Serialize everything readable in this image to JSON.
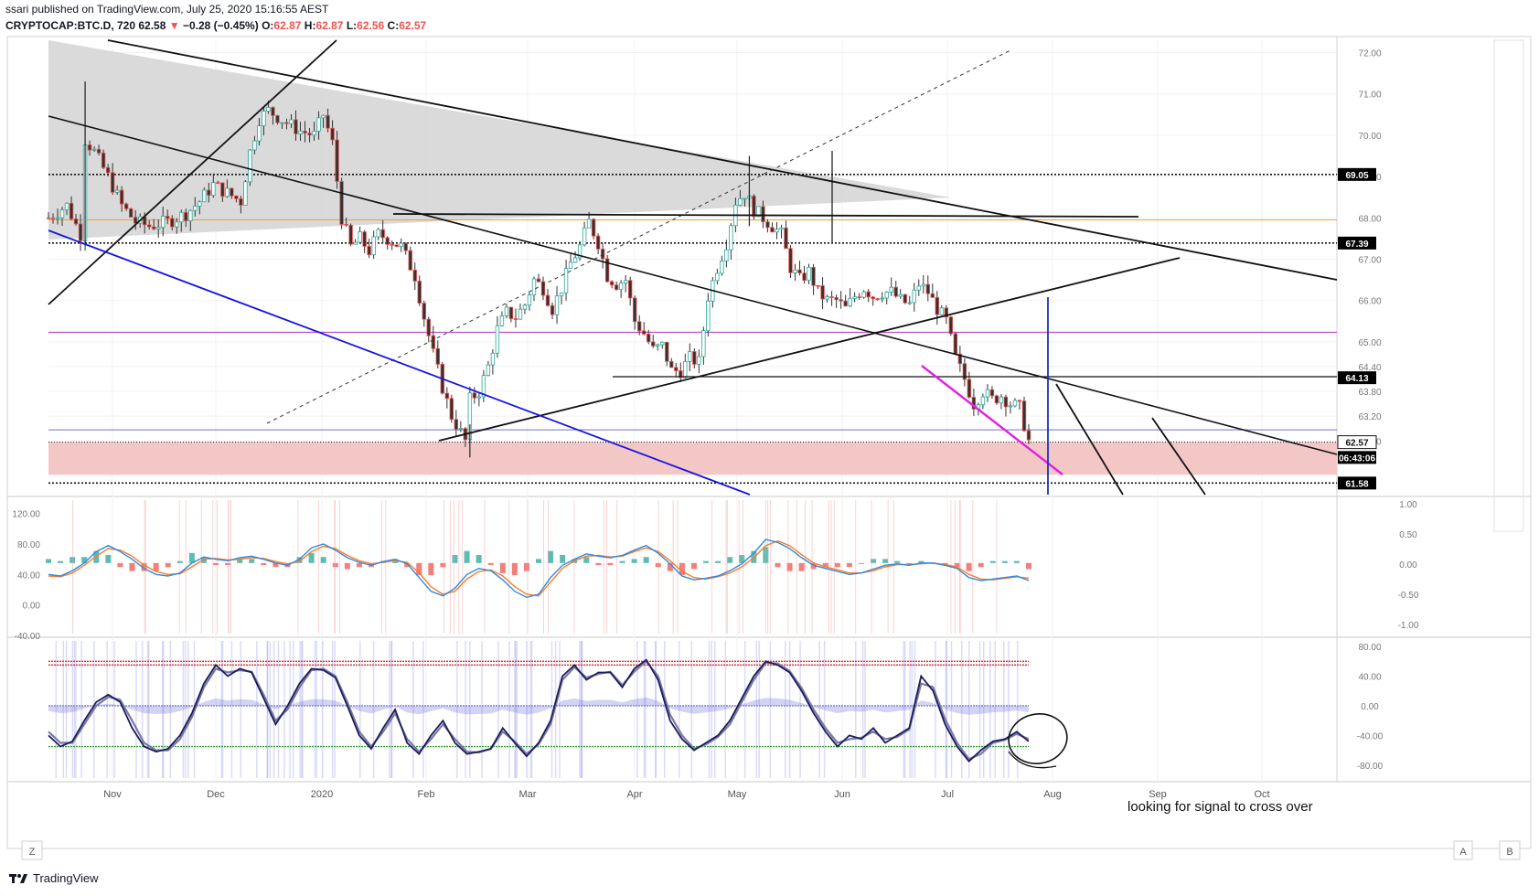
{
  "header": {
    "publisher": "ssari published on TradingView.com, July 25, 2020 15:16:55 AEST",
    "symbol": "CRYPTOCAP:BTC.D, 720",
    "last": "62.58",
    "change": "−0.28 (−0.45%)",
    "o_label": "O:",
    "o_val": "62.87",
    "h_label": "H:",
    "h_val": "62.87",
    "l_label": "L:",
    "l_val": "62.56",
    "c_label": "C:",
    "c_val": "62.57"
  },
  "footer": {
    "brand": "TradingView"
  },
  "corner_buttons": {
    "z": "Z",
    "a": "A",
    "b": "B"
  },
  "annotation": "looking for signal to cross over",
  "colors": {
    "up": "#26a69a",
    "down": "#ef5350",
    "blue_line": "#1515e0",
    "magenta": "#e020e0",
    "purple": "#b030c0",
    "orange": "#f0a030",
    "pink_zone": "#f4c7c7",
    "wedge": "#d3d3d3"
  },
  "chart_data": [
    {
      "type": "candlestick",
      "panel": "price",
      "symbol": "CRYPTOCAP:BTC.D",
      "ylim": [
        61.3,
        72.3
      ],
      "y_ticks": [
        "72.00",
        "71.00",
        "70.00",
        "69.00",
        "68.00",
        "67.00",
        "66.00",
        "65.00",
        "64.40",
        "63.80",
        "63.20",
        "62.60"
      ],
      "x_ticks": [
        "Nov",
        "Dec",
        "2020",
        "Feb",
        "Mar",
        "Apr",
        "May",
        "Jun",
        "Jul",
        "Aug",
        "Sep",
        "Oct"
      ],
      "price_labels": [
        {
          "value": 69.05,
          "text": "69.05",
          "bg": "#000000"
        },
        {
          "value": 67.39,
          "text": "67.39",
          "bg": "#000000"
        },
        {
          "value": 64.13,
          "text": "64.13",
          "bg": "#000000"
        },
        {
          "value": 62.57,
          "text": "62.57",
          "bg": "#ffffff"
        },
        {
          "value": 62.2,
          "text": "06:43:06",
          "bg": "#000000"
        },
        {
          "value": 61.58,
          "text": "61.58",
          "bg": "#000000"
        }
      ],
      "close_path": [
        [
          0,
          68.0
        ],
        [
          4,
          68.3
        ],
        [
          7,
          67.6
        ],
        [
          8,
          69.9
        ],
        [
          10,
          69.6
        ],
        [
          13,
          69.0
        ],
        [
          16,
          68.3
        ],
        [
          19,
          67.9
        ],
        [
          22,
          67.8
        ],
        [
          26,
          67.9
        ],
        [
          30,
          68.1
        ],
        [
          33,
          68.4
        ],
        [
          36,
          68.8
        ],
        [
          39,
          68.6
        ],
        [
          42,
          68.4
        ],
        [
          44,
          69.6
        ],
        [
          46,
          70.4
        ],
        [
          48,
          70.6
        ],
        [
          52,
          70.3
        ],
        [
          55,
          70.1
        ],
        [
          58,
          70.0
        ],
        [
          60,
          70.5
        ],
        [
          62,
          69.8
        ],
        [
          64,
          68.0
        ],
        [
          66,
          67.3
        ],
        [
          68,
          67.5
        ],
        [
          70,
          67.2
        ],
        [
          72,
          67.6
        ],
        [
          74,
          67.5
        ],
        [
          77,
          67.3
        ],
        [
          80,
          66.6
        ],
        [
          82,
          65.6
        ],
        [
          84,
          64.7
        ],
        [
          86,
          63.9
        ],
        [
          88,
          63.2
        ],
        [
          90,
          62.8
        ],
        [
          91,
          62.6
        ],
        [
          92,
          63.6
        ],
        [
          94,
          63.8
        ],
        [
          96,
          64.4
        ],
        [
          98,
          65.3
        ],
        [
          100,
          65.7
        ],
        [
          102,
          65.6
        ],
        [
          104,
          65.9
        ],
        [
          106,
          66.5
        ],
        [
          108,
          66.3
        ],
        [
          110,
          65.8
        ],
        [
          112,
          66.3
        ],
        [
          114,
          66.9
        ],
        [
          116,
          67.3
        ],
        [
          118,
          67.9
        ],
        [
          120,
          67.4
        ],
        [
          122,
          66.6
        ],
        [
          124,
          66.4
        ],
        [
          126,
          66.5
        ],
        [
          128,
          65.5
        ],
        [
          130,
          65.2
        ],
        [
          132,
          64.8
        ],
        [
          134,
          64.9
        ],
        [
          136,
          64.3
        ],
        [
          138,
          64.3
        ],
        [
          140,
          64.6
        ],
        [
          142,
          64.5
        ],
        [
          144,
          66.1
        ],
        [
          146,
          66.8
        ],
        [
          148,
          67.4
        ],
        [
          150,
          68.4
        ],
        [
          152,
          68.6
        ],
        [
          154,
          68.2
        ],
        [
          156,
          68.0
        ],
        [
          158,
          67.8
        ],
        [
          160,
          67.6
        ],
        [
          162,
          66.8
        ],
        [
          164,
          66.5
        ],
        [
          166,
          66.7
        ],
        [
          168,
          66.2
        ],
        [
          170,
          66.0
        ],
        [
          172,
          66.0
        ],
        [
          174,
          65.8
        ],
        [
          176,
          66.1
        ],
        [
          178,
          66.3
        ],
        [
          180,
          66.1
        ],
        [
          182,
          66.2
        ],
        [
          184,
          66.2
        ],
        [
          186,
          66.0
        ],
        [
          188,
          65.9
        ],
        [
          190,
          66.4
        ],
        [
          192,
          66.2
        ],
        [
          194,
          65.8
        ],
        [
          196,
          65.5
        ],
        [
          198,
          64.6
        ],
        [
          200,
          64.1
        ],
        [
          202,
          63.5
        ],
        [
          204,
          63.8
        ],
        [
          206,
          63.6
        ],
        [
          208,
          63.7
        ],
        [
          210,
          63.5
        ],
        [
          212,
          63.4
        ],
        [
          214,
          62.6
        ]
      ]
    },
    {
      "type": "line",
      "panel": "macd",
      "ylim": [
        -40,
        140
      ],
      "y_ticks": [
        "120.00",
        "80.00",
        "40.00",
        "0.00",
        "-40.00"
      ],
      "y_ticks_right": [
        "1.00",
        "0.50",
        "0.00",
        "-0.50",
        "-1.00"
      ],
      "series": [
        {
          "values": [
            40,
            38,
            45,
            55,
            70,
            78,
            70,
            60,
            48,
            40,
            38,
            42,
            55,
            63,
            60,
            58,
            62,
            64,
            60,
            55,
            52,
            60,
            75,
            80,
            72,
            62,
            56,
            52,
            57,
            60,
            54,
            36,
            18,
            12,
            22,
            40,
            48,
            45,
            33,
            18,
            10,
            14,
            36,
            52,
            60,
            67,
            64,
            62,
            65,
            72,
            78,
            68,
            54,
            38,
            33,
            35,
            38,
            45,
            54,
            68,
            86,
            82,
            74,
            62,
            52,
            48,
            44,
            40,
            42,
            47,
            52,
            54,
            52,
            55,
            55,
            52,
            48,
            36,
            32,
            34,
            36,
            38,
            32
          ]
        },
        {
          "values": [
            38,
            37,
            42,
            52,
            64,
            74,
            72,
            64,
            52,
            44,
            40,
            41,
            50,
            60,
            61,
            59,
            60,
            62,
            61,
            57,
            54,
            57,
            70,
            77,
            74,
            65,
            58,
            54,
            56,
            58,
            56,
            42,
            24,
            14,
            18,
            34,
            44,
            46,
            38,
            24,
            14,
            12,
            30,
            48,
            58,
            64,
            65,
            63,
            64,
            70,
            75,
            70,
            58,
            44,
            36,
            34,
            37,
            42,
            50,
            62,
            78,
            84,
            78,
            66,
            55,
            50,
            46,
            42,
            42,
            45,
            50,
            53,
            53,
            54,
            55,
            53,
            50,
            40,
            34,
            33,
            35,
            37,
            35
          ]
        }
      ]
    },
    {
      "type": "line",
      "panel": "oscillator",
      "ylim": [
        -100,
        90
      ],
      "y_ticks": [
        "80.00",
        "40.00",
        "0.00",
        "-40.00",
        "-80.00"
      ],
      "reference_levels": [
        {
          "value": 60,
          "color": "#e03030"
        },
        {
          "value": 55,
          "color": "#e03030"
        },
        {
          "value": -55,
          "color": "#30a030"
        },
        {
          "value": 0,
          "color": "#8080d0"
        }
      ],
      "series": [
        {
          "values": [
            -40,
            -55,
            -48,
            -20,
            5,
            15,
            5,
            -30,
            -55,
            -62,
            -58,
            -40,
            -10,
            30,
            55,
            40,
            50,
            45,
            10,
            -25,
            0,
            30,
            50,
            48,
            38,
            0,
            -40,
            -58,
            -30,
            -5,
            -50,
            -65,
            -40,
            -20,
            -50,
            -65,
            -62,
            -58,
            -30,
            -50,
            -68,
            -50,
            -20,
            40,
            55,
            35,
            45,
            45,
            25,
            50,
            62,
            35,
            -20,
            -45,
            -60,
            -50,
            -40,
            -20,
            10,
            40,
            60,
            55,
            45,
            20,
            -10,
            -35,
            -55,
            -40,
            -45,
            -30,
            -50,
            -40,
            -30,
            40,
            20,
            -25,
            -55,
            -75,
            -60,
            -48,
            -45,
            -35,
            -48
          ]
        },
        {
          "values": [
            -35,
            -50,
            -50,
            -25,
            0,
            12,
            8,
            -20,
            -50,
            -60,
            -60,
            -45,
            -15,
            25,
            50,
            45,
            48,
            46,
            15,
            -20,
            -5,
            25,
            48,
            50,
            40,
            5,
            -35,
            -55,
            -35,
            -10,
            -45,
            -62,
            -45,
            -25,
            -45,
            -62,
            -63,
            -58,
            -35,
            -48,
            -65,
            -52,
            -25,
            35,
            52,
            38,
            43,
            46,
            28,
            46,
            60,
            40,
            -12,
            -40,
            -58,
            -52,
            -42,
            -25,
            5,
            35,
            58,
            57,
            47,
            24,
            -5,
            -30,
            -50,
            -45,
            -43,
            -35,
            -45,
            -42,
            -32,
            30,
            25,
            -18,
            -50,
            -72,
            -65,
            -50,
            -46,
            -38,
            -45
          ]
        }
      ]
    }
  ]
}
